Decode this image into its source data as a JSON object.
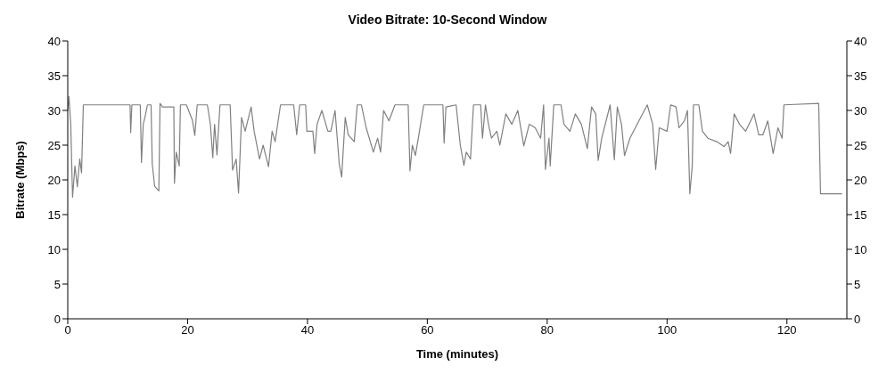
{
  "chart_data": {
    "type": "line",
    "title": "Video Bitrate: 10-Second Window",
    "xlabel": "Time (minutes)",
    "ylabel": "Bitrate (Mbps)",
    "xlim": [
      0,
      130
    ],
    "xticks": [
      0,
      20,
      40,
      60,
      80,
      100,
      120
    ],
    "ylim": [
      0,
      40
    ],
    "yticks": [
      0,
      5,
      10,
      15,
      20,
      25,
      30,
      35,
      40
    ],
    "y2lim": [
      0,
      40
    ],
    "y2ticks": [
      0,
      5,
      10,
      15,
      20,
      25,
      30,
      35,
      40
    ],
    "grid": false,
    "legend": false,
    "x": [
      0,
      0.2,
      0.5,
      0.8,
      1.2,
      1.6,
      2,
      2.3,
      2.6,
      2.7,
      10.4,
      10.5,
      10.7,
      12.1,
      12.3,
      12.6,
      12.9,
      13.3,
      13.9,
      14.1,
      14.5,
      15.2,
      15.4,
      15.8,
      17.7,
      17.8,
      18.1,
      18.6,
      18.8,
      19.8,
      20.8,
      21.2,
      21.6,
      23.3,
      23.8,
      24.2,
      24.5,
      24.9,
      25.4,
      27.1,
      27.5,
      28.1,
      28.5,
      29,
      29.6,
      30.6,
      31.1,
      32,
      32.6,
      33.5,
      34.1,
      34.6,
      35.5,
      37.7,
      38.2,
      38.7,
      39.7,
      39.9,
      40.9,
      41.2,
      41.6,
      42.4,
      43.4,
      43.9,
      44.6,
      45.3,
      45.7,
      46.3,
      46.8,
      47.8,
      48.3,
      49,
      49.8,
      51,
      51.7,
      52.2,
      52.7,
      53.6,
      54.6,
      56.8,
      57.1,
      57.5,
      58,
      58.5,
      59.4,
      62.6,
      62.8,
      63.1,
      64.8,
      65.5,
      66.1,
      66.5,
      67.2,
      67.7,
      68.9,
      69.2,
      69.7,
      70.2,
      70.7,
      71.6,
      72.1,
      73.1,
      74.1,
      75.1,
      76.1,
      77,
      78,
      78.9,
      79.4,
      79.7,
      80.3,
      80.5,
      81.1,
      82.3,
      82.8,
      83.8,
      84.7,
      85.7,
      86.7,
      87.4,
      88.1,
      88.5,
      89.1,
      90.5,
      91.2,
      91.7,
      92.4,
      92.9,
      93.8,
      95.3,
      96.7,
      97.6,
      98.1,
      98.7,
      100,
      100.6,
      101.5,
      102,
      102.9,
      103.4,
      103.8,
      104.2,
      104.4,
      105.3,
      105.9,
      106.8,
      108.3,
      109.5,
      110.2,
      110.6,
      111.2,
      112.1,
      113.1,
      114.5,
      115.3,
      116,
      116.8,
      117.7,
      118.5,
      119.2,
      119.5,
      125.3,
      125.6,
      129.2
    ],
    "series": [
      {
        "color": "#808080",
        "values": [
          30,
          32,
          28,
          17.5,
          22,
          19,
          23,
          21,
          30.8,
          30.8,
          30.8,
          26.8,
          30.8,
          30.8,
          22.5,
          28,
          29.1,
          30.8,
          30.8,
          22.3,
          19.1,
          18.4,
          31,
          30.5,
          30.5,
          19.5,
          24,
          22,
          30.8,
          30.8,
          28.6,
          26.4,
          30.8,
          30.8,
          28,
          23.2,
          28,
          23.6,
          30.8,
          30.8,
          21.4,
          23,
          18.1,
          29,
          27,
          30.5,
          27,
          23,
          25,
          21.9,
          27,
          25.5,
          30.8,
          30.8,
          26.5,
          30.8,
          30.8,
          27,
          27,
          23.8,
          28,
          30,
          27,
          27,
          30,
          22.3,
          20.4,
          29,
          26.5,
          25.5,
          30.8,
          30.8,
          27.5,
          24,
          26,
          24,
          30,
          28.5,
          30.8,
          30.8,
          21.3,
          25,
          23.5,
          26,
          30.8,
          30.8,
          25.3,
          30.5,
          30.8,
          25,
          22.1,
          24,
          23,
          30.8,
          30.8,
          26,
          30.8,
          28,
          26,
          27,
          25,
          29.5,
          28,
          30,
          24.9,
          28,
          27.5,
          26,
          30.8,
          21.5,
          26,
          22,
          30.8,
          30.8,
          28,
          27,
          29.5,
          28,
          24.5,
          30.5,
          29.5,
          22.8,
          26,
          30.8,
          22.9,
          30.5,
          28,
          23.5,
          26,
          28.5,
          30.8,
          28,
          21.5,
          27.5,
          27,
          30.8,
          30.5,
          27.5,
          28.5,
          30,
          18,
          22,
          30.8,
          30.8,
          27,
          26,
          25.5,
          24.8,
          25.5,
          23.8,
          29.5,
          28,
          27,
          29.5,
          26.5,
          26.5,
          28.5,
          23.8,
          27.5,
          26,
          30.8,
          31,
          18,
          18
        ]
      }
    ]
  }
}
